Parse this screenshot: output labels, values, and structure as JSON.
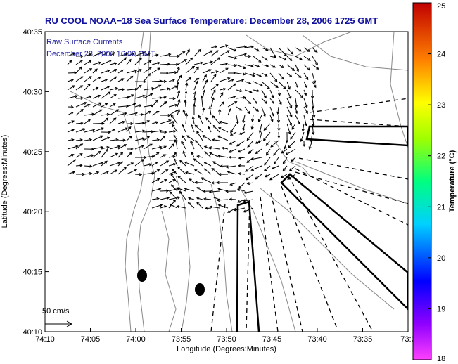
{
  "chart_data": {
    "type": "vector-field-map",
    "title": "RU COOL  NOAA−18  Sea Surface Temperature:  December 28, 2006 1725 GMT",
    "annotation_lines": [
      "Raw Surface Currents",
      "December 28, 2006 16:00 GMT"
    ],
    "xlabel": "Longitude (Degrees:Minutes)",
    "ylabel": "Latitude (Degrees:Minutes)",
    "x_ticks": [
      "74:10",
      "74:05",
      "74:00",
      "73:55",
      "73:50",
      "73:45",
      "73:40",
      "73:35",
      "73:3"
    ],
    "y_ticks": [
      "40:35",
      "40:30",
      "40:25",
      "40:20",
      "40:15",
      "40:10"
    ],
    "xlim_minutes_west": [
      4450,
      4410
    ],
    "ylim_minutes_north": [
      2410,
      2435
    ],
    "scale_arrow_label": "50 cm/s",
    "colorbar": {
      "label": "Temperature (°C)",
      "min": 18,
      "max": 25,
      "ticks": [
        "25",
        "24",
        "23",
        "22",
        "21",
        "20",
        "19",
        "18"
      ]
    },
    "grid": false
  }
}
